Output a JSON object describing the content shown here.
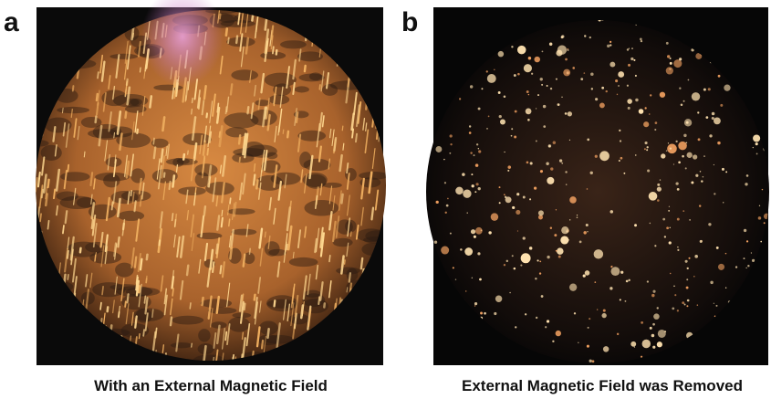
{
  "panels": [
    {
      "label": "a",
      "caption": "With an External Magnetic Field"
    },
    {
      "label": "b",
      "caption": "External Magnetic Field was Removed"
    }
  ]
}
